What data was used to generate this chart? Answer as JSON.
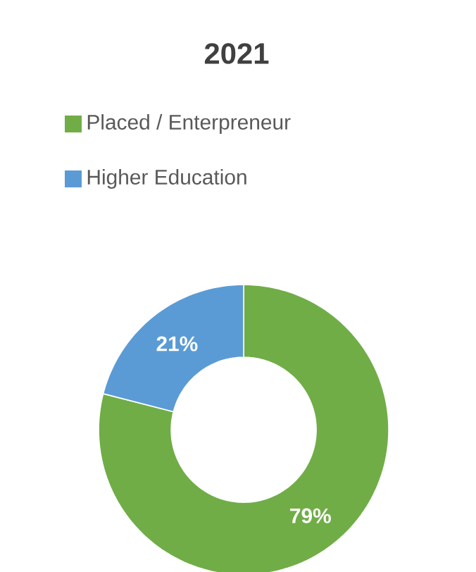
{
  "chart_data": {
    "type": "donut",
    "title": "2021",
    "categories": [
      "Placed / Enterpreneur",
      "Higher Education"
    ],
    "values": [
      79,
      21
    ],
    "colors": [
      "#70ad47",
      "#5b9bd5"
    ],
    "value_labels": [
      "79%",
      "21%"
    ],
    "legend": "top"
  }
}
